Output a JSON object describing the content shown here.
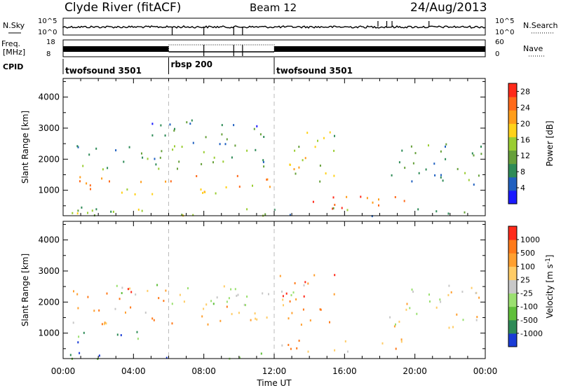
{
  "header": {
    "station": "Clyde River (fitACF)",
    "beam": "Beam 12",
    "date": "24/Aug/2013"
  },
  "top_panels": {
    "nsky_label": "N.Sky",
    "nsearch_label": "N.Search",
    "freq_label_line1": "Freq.",
    "freq_label_line2": "[MHz]",
    "nave_label": "Nave",
    "cpid_label": "CPID",
    "nsky_left_ticks": [
      "10^5",
      "10^0"
    ],
    "nsky_right_ticks": [
      "10^5",
      "10^0"
    ],
    "freq_left_ticks": [
      "18",
      "8"
    ],
    "freq_right_ticks": [
      "60",
      "0"
    ]
  },
  "cpid_segments": [
    {
      "label": "twofsound 3501",
      "start_hour": 0
    },
    {
      "label": "rbsp 200",
      "start_hour": 6
    },
    {
      "label": "twofsound 3501",
      "start_hour": 12
    }
  ],
  "x_axis": {
    "label": "Time UT",
    "ticks": [
      "00:00",
      "04:00",
      "08:00",
      "12:00",
      "16:00",
      "20:00",
      "00:00"
    ]
  },
  "chart_data": [
    {
      "type": "heatmap",
      "name": "power-panel",
      "ylabel": "Slant Range [km]",
      "yticks": [
        "1000",
        "2000",
        "3000",
        "4000"
      ],
      "ylim": [
        180,
        4600
      ],
      "xlim_hours": [
        0,
        24
      ],
      "colorbar": {
        "label": "Power [dB]",
        "ticks": [
          "4",
          "8",
          "12",
          "16",
          "20",
          "24",
          "28"
        ],
        "range": [
          0,
          30
        ],
        "colors": [
          "#1a1aff",
          "#2060c0",
          "#2e8b57",
          "#66a03a",
          "#9acd32",
          "#ffd21a",
          "#ff9d1a",
          "#ff6a1a",
          "#ff2a1a"
        ]
      },
      "scatter_bands": [
        {
          "t0": 0.3,
          "t1": 11.8,
          "r0": 900,
          "r1": 1500,
          "level": 0.75
        },
        {
          "t0": 0.3,
          "t1": 11.8,
          "r0": 1700,
          "r1": 2500,
          "level": 0.35
        },
        {
          "t0": 5.0,
          "t1": 12.0,
          "r0": 2500,
          "r1": 3300,
          "level": 0.25
        },
        {
          "t0": 12.2,
          "t1": 15.5,
          "r0": 1300,
          "r1": 2900,
          "level": 0.5
        },
        {
          "t0": 12.2,
          "t1": 19.5,
          "r0": 400,
          "r1": 850,
          "level": 0.95
        },
        {
          "t0": 18.5,
          "t1": 23.9,
          "r0": 1200,
          "r1": 2600,
          "level": 0.3
        },
        {
          "t0": 0.2,
          "t1": 23.9,
          "r0": 200,
          "r1": 500,
          "level": 0.4
        }
      ]
    },
    {
      "type": "heatmap",
      "name": "velocity-panel",
      "ylabel": "Slant Range [km]",
      "yticks": [
        "1000",
        "2000",
        "3000",
        "4000"
      ],
      "ylim": [
        180,
        4600
      ],
      "xlim_hours": [
        0,
        24
      ],
      "colorbar": {
        "label": "Velocity [m s^-1]",
        "ticks": [
          "1000",
          "500",
          "100",
          "25",
          "-25",
          "-100",
          "-500",
          "-1000"
        ],
        "colors": [
          "#1a3cd6",
          "#2e8b57",
          "#5fbf3a",
          "#9be070",
          "#c8c8c8",
          "#ffcc66",
          "#ffa030",
          "#ff7a1a",
          "#ff2a1a"
        ]
      },
      "scatter_bands": [
        {
          "t0": 0.3,
          "t1": 11.8,
          "r0": 1300,
          "r1": 1900,
          "level": 0.7
        },
        {
          "t0": 0.3,
          "t1": 6.0,
          "r0": 2000,
          "r1": 2500,
          "level": 0.85
        },
        {
          "t0": 3.0,
          "t1": 14.0,
          "r0": 1900,
          "r1": 2600,
          "level": 0.45
        },
        {
          "t0": 0.3,
          "t1": 5.0,
          "r0": 700,
          "r1": 1100,
          "level": 0.15
        },
        {
          "t0": 12.2,
          "t1": 15.5,
          "r0": 1300,
          "r1": 3000,
          "level": 0.8
        },
        {
          "t0": 12.2,
          "t1": 19.5,
          "r0": 400,
          "r1": 850,
          "level": 0.65
        },
        {
          "t0": 18.5,
          "t1": 23.9,
          "r0": 1200,
          "r1": 2600,
          "level": 0.6
        },
        {
          "t0": 0.2,
          "t1": 12.0,
          "r0": 200,
          "r1": 400,
          "level": 0.2
        }
      ]
    }
  ]
}
